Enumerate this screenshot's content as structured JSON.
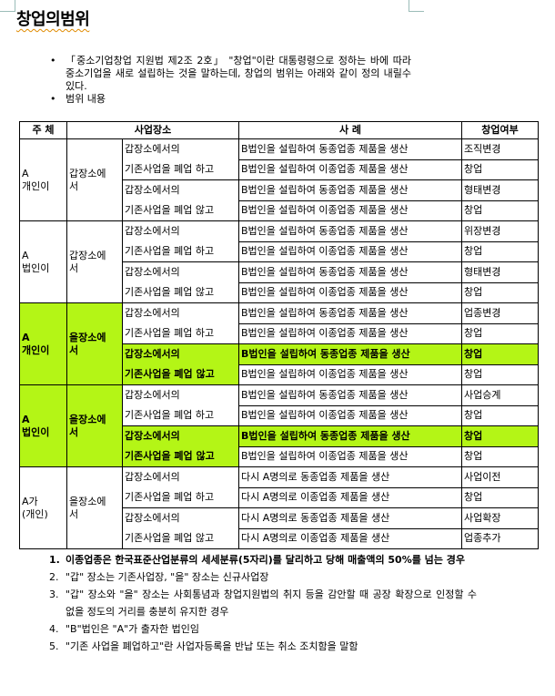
{
  "title": "창업의범위",
  "bullets": [
    "「중소기업창업 지원법 제2조 2호」 \"창업\"이란 대통령령으로 정하는 바에 따라 중소기업을 새로 설립하는 것을 말하는데, 창업의 범위는 아래와 같이 정의 내릴수 있다.",
    "범위 내용"
  ],
  "table": {
    "headers": [
      "주 체",
      "사업장소",
      "사 례",
      "창업여부"
    ],
    "highlight_color": "#b4f516",
    "groups": [
      {
        "subject": [
          "A",
          "개인이"
        ],
        "location": [
          "갑장소에",
          "서"
        ],
        "highlight": false,
        "subgroups": [
          {
            "desc": [
              "갑장소에서의",
              "기존사업을 폐업 하고"
            ],
            "highlight": false,
            "rows": [
              {
                "case": "B법인을 설립하여 동종업종 제품을 생산",
                "result": "조직변경",
                "highlight": false
              },
              {
                "case": "B법인을 설립하여 이종업종 제품을 생산",
                "result": "창업",
                "highlight": false
              }
            ]
          },
          {
            "desc": [
              "갑장소에서의",
              "기존사업을 폐업 않고"
            ],
            "highlight": false,
            "rows": [
              {
                "case": "B법인을 설립하여 동종업종 제품을 생산",
                "result": "형태변경",
                "highlight": false
              },
              {
                "case": "B법인을 설립하여 이종업종 제품을 생산",
                "result": "창업",
                "highlight": false
              }
            ]
          }
        ]
      },
      {
        "subject": [
          "A",
          "법인이"
        ],
        "location": [
          "갑장소에",
          "서"
        ],
        "highlight": false,
        "subgroups": [
          {
            "desc": [
              "갑장소에서의",
              "기존사업을 폐업 하고"
            ],
            "highlight": false,
            "rows": [
              {
                "case": "B법인을 설립하여 동종업종 제품을 생산",
                "result": "위장변경",
                "highlight": false
              },
              {
                "case": "B법인을 설립하여 이종업종 제품을 생산",
                "result": "창업",
                "highlight": false
              }
            ]
          },
          {
            "desc": [
              "갑장소에서의",
              "기존사업을 폐업 않고"
            ],
            "highlight": false,
            "rows": [
              {
                "case": "B법인을 설립하여 동종업종 제품을 생산",
                "result": "형태변경",
                "highlight": false
              },
              {
                "case": "B법인을 설립하여 이종업종 제품을 생산",
                "result": "창업",
                "highlight": false
              }
            ]
          }
        ]
      },
      {
        "subject": [
          "A",
          "개인이"
        ],
        "location": [
          "을장소에",
          "서"
        ],
        "highlight": true,
        "subgroups": [
          {
            "desc": [
              "갑장소에서의",
              "기존사업을 폐업 하고"
            ],
            "highlight": false,
            "rows": [
              {
                "case": "B법인을 설립하여 동종업종 제품을 생산",
                "result": "업종변경",
                "highlight": false
              },
              {
                "case": "B법인을 설립하여 이종업종 제품을 생산",
                "result": "창업",
                "highlight": false
              }
            ]
          },
          {
            "desc": [
              "갑장소에서의",
              "기존사업을 폐업 않고"
            ],
            "highlight": true,
            "rows": [
              {
                "case": "B법인을 설립하여 동종업종 제품을 생산",
                "result": "창업",
                "highlight": true
              },
              {
                "case": "B법인을 설립하여 이종업종 제품을 생산",
                "result": "창업",
                "highlight": false
              }
            ]
          }
        ]
      },
      {
        "subject": [
          "A",
          "법인이"
        ],
        "location": [
          "을장소에",
          "서"
        ],
        "highlight": true,
        "subgroups": [
          {
            "desc": [
              "갑장소에서의",
              "기존사업을 폐업 하고"
            ],
            "highlight": false,
            "rows": [
              {
                "case": "B법인을 설립하여 동종업종 제품을 생산",
                "result": "사업승계",
                "highlight": false
              },
              {
                "case": "B법인을 설립하여 이종업종 제품을 생산",
                "result": "창업",
                "highlight": false
              }
            ]
          },
          {
            "desc": [
              "갑장소에서의",
              "기존사업을 폐업 않고"
            ],
            "highlight": true,
            "rows": [
              {
                "case": "B법인을 설립하여 동종업종 제품을 생산",
                "result": "창업",
                "highlight": true
              },
              {
                "case": "B법인을 설립하여 이종업종 제품을 생산",
                "result": "창업",
                "highlight": false
              }
            ]
          }
        ]
      },
      {
        "subject": [
          "A가",
          "(개인)"
        ],
        "location": [
          "을장소에",
          "서"
        ],
        "highlight": false,
        "subgroups": [
          {
            "desc": [
              "갑장소에서의",
              "기존사업을 폐업 하고"
            ],
            "highlight": false,
            "rows": [
              {
                "case": "다시 A명의로 동종업종 제품을 생산",
                "result": "사업이전",
                "highlight": false
              },
              {
                "case": "다시 A명의로 이종업종 제품을 생산",
                "result": "창업",
                "highlight": false
              }
            ]
          },
          {
            "desc": [
              "갑장소에서의",
              "기존사업을 폐업 않고"
            ],
            "highlight": false,
            "rows": [
              {
                "case": "다시 A명의로 동종업종 제품을 생산",
                "result": "사업확장",
                "highlight": false
              },
              {
                "case": "다시 A명의로 이종업종 제품을 생산",
                "result": "업종추가",
                "highlight": false
              }
            ]
          }
        ]
      }
    ]
  },
  "notes": [
    {
      "num": "1.",
      "text": "이종업종은 한국표준산업분류의 세세분류(5자리)를 달리하고 당해 매출액의 50%를 넘는 경우",
      "bold": true
    },
    {
      "num": "2.",
      "text": "\"갑\" 장소는 기존사업장, \"을\" 장소는 신규사업장",
      "bold": false
    },
    {
      "num": "3.",
      "text": "\"갑\" 장소와 \"을\" 장소는 사회통념과 창업지원법의 취지 등을 감안할 때 공장 확장으로 인정할 수 없을 정도의 거리를 충분히 유지한 경우",
      "bold": false
    },
    {
      "num": "4.",
      "text": "\"B\"법인은 \"A\"가 출자한 법인임",
      "bold": false
    },
    {
      "num": "5.",
      "text": "\"기존 사업을 폐업하고\"란 사업자등록을 반납 또는 취소 조치함을 말함",
      "bold": false
    }
  ]
}
